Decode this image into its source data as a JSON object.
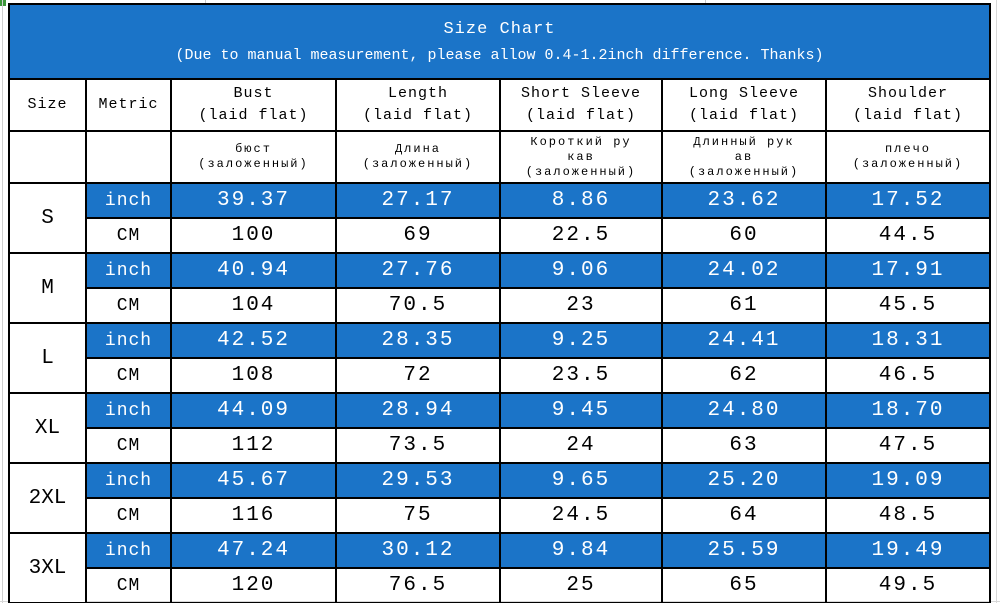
{
  "banner": {
    "title": "Size Chart",
    "subtitle": "(Due to manual measurement, please allow 0.4-1.2inch difference. Thanks)"
  },
  "chart_data": {
    "type": "table",
    "title": "Size Chart",
    "note": "(Due to manual measurement, please allow 0.4-1.2inch difference. Thanks)",
    "columns": [
      {
        "label": "Size",
        "sub": "",
        "ru": ""
      },
      {
        "label": "Metric",
        "sub": "",
        "ru": ""
      },
      {
        "label": "Bust",
        "sub": "(laid flat)",
        "ru": "бюст\n(заложенный)"
      },
      {
        "label": "Length",
        "sub": "(laid flat)",
        "ru": "Длина\n(заложенный)"
      },
      {
        "label": "Short Sleeve",
        "sub": "(laid flat)",
        "ru": "Короткий ру\nкав\n(заложенный)"
      },
      {
        "label": "Long Sleeve",
        "sub": "(laid flat)",
        "ru": "Длинный рук\nав\n(заложенный)"
      },
      {
        "label": "Shoulder",
        "sub": "(laid flat)",
        "ru": "плечо\n(заложенный)"
      }
    ],
    "unit_labels": {
      "inch": "inch",
      "cm": "CM"
    },
    "rows": [
      {
        "size": "S",
        "inch": [
          "39.37",
          "27.17",
          "8.86",
          "23.62",
          "17.52"
        ],
        "cm": [
          "100",
          "69",
          "22.5",
          "60",
          "44.5"
        ]
      },
      {
        "size": "M",
        "inch": [
          "40.94",
          "27.76",
          "9.06",
          "24.02",
          "17.91"
        ],
        "cm": [
          "104",
          "70.5",
          "23",
          "61",
          "45.5"
        ]
      },
      {
        "size": "L",
        "inch": [
          "42.52",
          "28.35",
          "9.25",
          "24.41",
          "18.31"
        ],
        "cm": [
          "108",
          "72",
          "23.5",
          "62",
          "46.5"
        ]
      },
      {
        "size": "XL",
        "inch": [
          "44.09",
          "28.94",
          "9.45",
          "24.80",
          "18.70"
        ],
        "cm": [
          "112",
          "73.5",
          "24",
          "63",
          "47.5"
        ]
      },
      {
        "size": "2XL",
        "inch": [
          "45.67",
          "29.53",
          "9.65",
          "25.20",
          "19.09"
        ],
        "cm": [
          "116",
          "75",
          "24.5",
          "64",
          "48.5"
        ]
      },
      {
        "size": "3XL",
        "inch": [
          "47.24",
          "30.12",
          "9.84",
          "25.59",
          "19.49"
        ],
        "cm": [
          "120",
          "76.5",
          "25",
          "65",
          "49.5"
        ]
      }
    ]
  },
  "colors": {
    "banner_blue": "#1b74c8",
    "inch_row_blue": "#1b74c8",
    "border_black": "#000000",
    "text_white": "#ffffff",
    "text_black": "#000000",
    "gridline_gray": "#cfcfcf",
    "corner_green": "#3c9639"
  }
}
